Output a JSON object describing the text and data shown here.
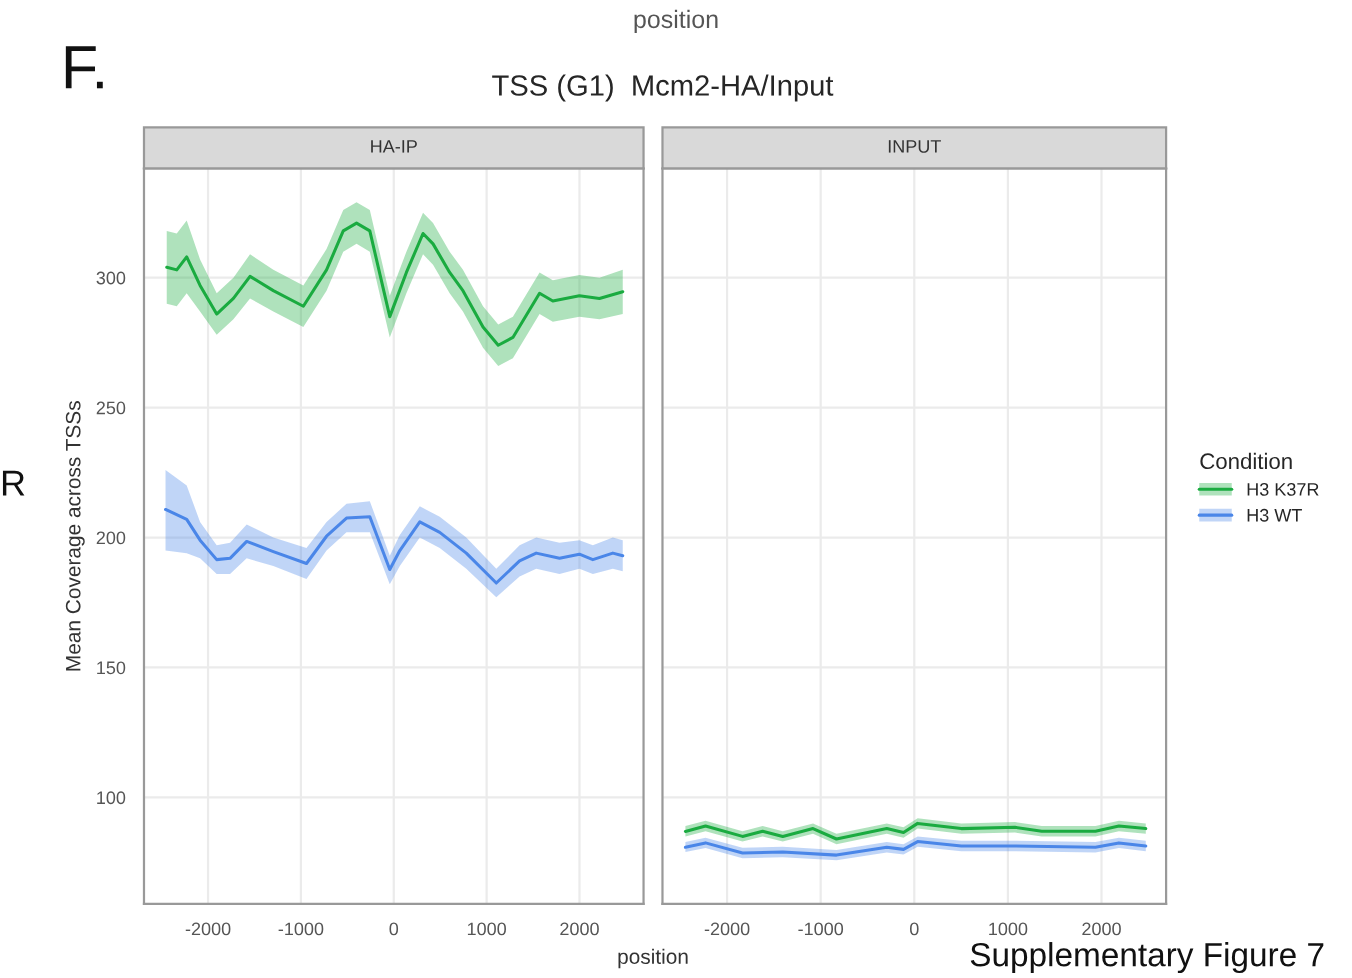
{
  "chart_data": [
    {
      "type": "line",
      "title": "TSS (G1)  Mcm2-HA/Input",
      "subtitle": "HA-IP",
      "xlabel": "position",
      "ylabel": "Mean Coverage across TSSs",
      "legend_title": "Condition",
      "legend": "right",
      "grid": true,
      "xlim": [
        -2690,
        2690
      ],
      "ylim": [
        59,
        342
      ],
      "xticks": [
        -2000,
        -1000,
        0,
        1000,
        2000
      ],
      "yticks": [
        100,
        150,
        200,
        250,
        300
      ],
      "annotations": [
        "F.",
        "position",
        "R",
        "Supplementary Figure 7"
      ],
      "series": [
        {
          "name": "H3 K37R",
          "color": "#1aab40",
          "x": [
            -2445,
            -2337,
            -2230,
            -2086,
            -1907,
            -1727,
            -1548,
            -1297,
            -974,
            -724,
            -544,
            -401,
            -258,
            -43,
            136,
            315,
            423,
            602,
            745,
            961,
            1125,
            1283,
            1570,
            1713,
            1999,
            2215,
            2466
          ],
          "values": [
            304,
            303,
            308,
            297,
            286,
            292,
            300.5,
            295,
            289,
            303,
            318,
            321,
            318,
            285,
            302,
            317,
            313,
            302,
            295,
            281,
            274,
            277,
            294,
            291,
            293,
            292,
            294.6
          ],
          "lower": [
            290,
            289,
            294,
            287,
            278,
            284,
            292,
            287,
            281,
            295,
            310,
            313,
            310,
            277,
            294,
            309,
            305,
            294,
            287,
            273,
            266,
            269,
            286,
            283,
            285,
            284,
            286
          ],
          "upper": [
            318,
            317,
            322,
            307,
            294,
            300,
            309,
            303,
            297,
            311,
            326,
            329,
            326,
            293,
            310,
            325,
            321,
            310,
            303,
            289,
            282,
            285,
            302,
            299,
            301,
            300,
            303
          ]
        },
        {
          "name": "H3 WT",
          "color": "#4a86e8",
          "x": [
            -2458,
            -2230,
            -2086,
            -1907,
            -1763,
            -1584,
            -1297,
            -940,
            -724,
            -509,
            -258,
            -43,
            65,
            280,
            495,
            781,
            1104,
            1355,
            1534,
            1785,
            1999,
            2144,
            2359,
            2466
          ],
          "values": [
            210.8,
            207,
            199,
            191.5,
            192,
            198.5,
            194.6,
            190,
            200.5,
            207.5,
            208,
            187.7,
            195,
            206,
            202,
            194,
            182.5,
            191,
            194,
            192,
            193.6,
            191.5,
            194,
            193
          ],
          "lower": [
            195,
            194,
            192,
            186,
            186,
            192,
            189,
            184,
            195,
            202,
            202,
            182,
            189,
            200,
            196,
            188,
            177,
            185,
            188,
            186,
            188,
            186,
            188,
            187
          ],
          "upper": [
            226,
            220,
            206,
            197,
            198,
            205,
            200,
            196,
            206,
            213,
            214,
            193,
            201,
            212,
            208,
            200,
            188,
            197,
            200,
            198,
            199,
            197,
            200,
            199
          ]
        }
      ]
    },
    {
      "type": "line",
      "subtitle": "INPUT",
      "grid": true,
      "tick_labels": "x",
      "xlim": [
        -2690,
        2690
      ],
      "ylim": [
        59,
        342
      ],
      "xticks": [
        -2000,
        -1000,
        0,
        1000,
        2000
      ],
      "yticks": [
        100,
        150,
        200,
        250,
        300
      ],
      "series": [
        {
          "color": "#1aab40",
          "x": [
            -2445,
            -2230,
            -1835,
            -1620,
            -1405,
            -1082,
            -831,
            -294,
            -115,
            36,
            502,
            1075,
            1362,
            1935,
            2186,
            2473
          ],
          "values": [
            86.9,
            89,
            85,
            87,
            85,
            88,
            84,
            88,
            86.5,
            90,
            88,
            88.5,
            87,
            87,
            89,
            88
          ],
          "lower": [
            85,
            87,
            83,
            85,
            83,
            86,
            82,
            86,
            84.5,
            88,
            86,
            86.5,
            85,
            85,
            87,
            86
          ],
          "upper": [
            89,
            91,
            87,
            89,
            87,
            90,
            86,
            90,
            88.5,
            92,
            90,
            90.5,
            89,
            89,
            91,
            90
          ]
        },
        {
          "color": "#4a86e8",
          "x": [
            -2445,
            -2230,
            -1835,
            -1405,
            -831,
            -294,
            -115,
            36,
            502,
            1075,
            1935,
            2186,
            2473
          ],
          "values": [
            80.8,
            82.5,
            78.6,
            79,
            77.8,
            80.8,
            80,
            83,
            81.3,
            81.3,
            80.8,
            82.5,
            81.3
          ],
          "lower": [
            79,
            80.5,
            76.6,
            77,
            75.8,
            78.8,
            78,
            81,
            79.3,
            79.3,
            78.8,
            80.5,
            79.3
          ],
          "upper": [
            82.8,
            84.5,
            80.6,
            81,
            79.8,
            82.8,
            82,
            85,
            83.3,
            83.3,
            82.8,
            84.5,
            83.3
          ]
        }
      ]
    }
  ]
}
